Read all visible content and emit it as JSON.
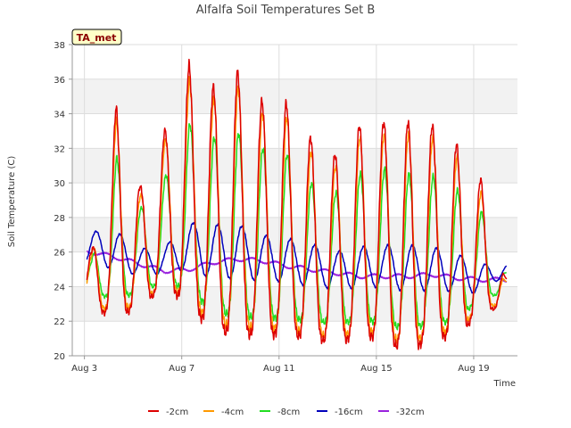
{
  "chart_data": {
    "type": "line",
    "title": "Alfalfa Soil Temperatures Set B",
    "xlabel": "Time",
    "ylabel": "Soil Temperature (C)",
    "badge": "TA_met",
    "xlim": [
      2.5,
      20.8
    ],
    "ylim": [
      20,
      38
    ],
    "x_ticks": [
      3,
      7,
      11,
      15,
      19
    ],
    "x_tick_labels": [
      "Aug 3",
      "Aug 7",
      "Aug 11",
      "Aug 15",
      "Aug 19"
    ],
    "y_ticks": [
      20,
      22,
      24,
      26,
      28,
      30,
      32,
      34,
      36,
      38
    ],
    "y_tick_labels": [
      "20",
      "22",
      "24",
      "26",
      "28",
      "30",
      "32",
      "34",
      "36",
      "38"
    ],
    "grid": true,
    "legend_position": "bottom",
    "series": [
      {
        "name": "-2cm",
        "color": "#dd0000"
      },
      {
        "name": "-4cm",
        "color": "#ff9900"
      },
      {
        "name": "-8cm",
        "color": "#22dd22"
      },
      {
        "name": "-16cm",
        "color": "#0000bb"
      },
      {
        "name": "-32cm",
        "color": "#9922dd"
      }
    ],
    "daily": {
      "days": [
        3.3,
        4.3,
        5.3,
        6.3,
        7.3,
        8.3,
        9.3,
        10.3,
        11.3,
        12.3,
        13.3,
        14.3,
        15.3,
        16.3,
        17.3,
        18.3,
        19.3,
        20.3
      ],
      "max_2": [
        26.0,
        34.4,
        29.7,
        33.0,
        36.8,
        35.5,
        36.4,
        34.7,
        34.6,
        32.6,
        31.6,
        33.3,
        33.5,
        33.5,
        33.3,
        32.2,
        30.2,
        24.5
      ],
      "min_2": [
        22.7,
        22.3,
        22.8,
        24.1,
        22.9,
        21.5,
        21.3,
        21.2,
        21.3,
        21.0,
        20.8,
        21.1,
        21.1,
        20.1,
        21.2,
        21.0,
        22.7,
        22.7
      ],
      "max_4": [
        25.8,
        33.7,
        29.2,
        32.4,
        35.9,
        34.8,
        35.5,
        34.0,
        33.8,
        31.8,
        30.9,
        32.6,
        32.8,
        32.8,
        32.6,
        31.5,
        29.5,
        24.3
      ],
      "min_4": [
        22.9,
        22.6,
        23.0,
        24.2,
        23.2,
        21.9,
        21.7,
        21.6,
        21.6,
        21.3,
        21.1,
        21.4,
        21.4,
        20.5,
        21.5,
        21.3,
        22.9,
        22.9
      ],
      "max_8": [
        25.5,
        31.5,
        28.5,
        30.3,
        33.4,
        32.6,
        32.9,
        32.0,
        31.7,
        30.0,
        29.4,
        30.5,
        30.8,
        30.5,
        30.4,
        29.6,
        28.4,
        24.8
      ],
      "min_8": [
        23.6,
        23.3,
        23.7,
        24.3,
        23.8,
        22.6,
        22.3,
        22.2,
        22.2,
        22.0,
        21.9,
        22.0,
        22.0,
        21.4,
        22.0,
        21.9,
        23.5,
        23.5
      ],
      "max_16": [
        27.2,
        27.2,
        26.2,
        26.3,
        27.7,
        27.6,
        27.6,
        27.0,
        26.8,
        26.5,
        26.0,
        26.3,
        26.4,
        26.4,
        26.3,
        25.9,
        25.3,
        25.3
      ],
      "min_16": [
        25.3,
        25.0,
        24.6,
        24.8,
        25.0,
        24.4,
        24.5,
        24.3,
        24.3,
        24.0,
        23.9,
        23.9,
        24.0,
        23.7,
        23.8,
        23.7,
        23.6,
        24.7
      ],
      "mean_32": [
        26.0,
        25.7,
        25.3,
        24.9,
        25.0,
        25.4,
        25.6,
        25.5,
        25.2,
        25.0,
        24.8,
        24.6,
        24.6,
        24.6,
        24.7,
        24.5,
        24.4,
        24.4
      ]
    }
  }
}
